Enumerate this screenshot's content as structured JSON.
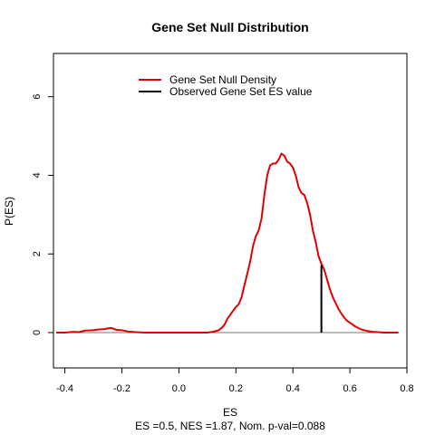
{
  "chart_data": {
    "type": "line",
    "title": "Gene Set Null Distribution",
    "xlabel": "ES",
    "ylabel": "P(ES)",
    "subtitle": "ES =0.5, NES =1.87, Nom. p-val=0.088",
    "xlim": [
      -0.44,
      0.8
    ],
    "ylim": [
      -0.9,
      7.1
    ],
    "x_ticks": [
      -0.4,
      -0.2,
      0.0,
      0.2,
      0.4,
      0.6,
      0.8
    ],
    "x_tick_labels": [
      "-0.4",
      "-0.2",
      "0.0",
      "0.2",
      "0.4",
      "0.6",
      "0.8"
    ],
    "y_ticks": [
      0,
      2,
      4,
      6
    ],
    "y_tick_labels": [
      "0",
      "2",
      "4",
      "6"
    ],
    "grid": false,
    "legend": {
      "placement": "top-center",
      "entries": [
        {
          "label": "Gene Set Null Density",
          "color": "#e00000"
        },
        {
          "label": "Observed Gene Set ES value",
          "color": "#000000"
        }
      ]
    },
    "baseline": {
      "y": 0,
      "x_range": [
        -0.43,
        0.77
      ],
      "color": "#777777"
    },
    "series": [
      {
        "name": "Gene Set Null Density",
        "color": "#e00000",
        "x": [
          -0.43,
          -0.4,
          -0.37,
          -0.35,
          -0.33,
          -0.3,
          -0.28,
          -0.26,
          -0.24,
          -0.23,
          -0.22,
          -0.2,
          -0.18,
          -0.15,
          -0.12,
          -0.08,
          0.0,
          0.05,
          0.1,
          0.12,
          0.14,
          0.15,
          0.16,
          0.17,
          0.18,
          0.19,
          0.2,
          0.21,
          0.22,
          0.23,
          0.24,
          0.25,
          0.26,
          0.27,
          0.28,
          0.29,
          0.3,
          0.31,
          0.32,
          0.33,
          0.34,
          0.35,
          0.36,
          0.37,
          0.38,
          0.39,
          0.4,
          0.41,
          0.42,
          0.43,
          0.44,
          0.45,
          0.46,
          0.47,
          0.48,
          0.49,
          0.5,
          0.51,
          0.52,
          0.53,
          0.54,
          0.55,
          0.56,
          0.57,
          0.58,
          0.59,
          0.6,
          0.62,
          0.64,
          0.66,
          0.68,
          0.7,
          0.72,
          0.74,
          0.77
        ],
        "values": [
          0.0,
          0.0,
          0.02,
          0.01,
          0.05,
          0.06,
          0.08,
          0.09,
          0.12,
          0.1,
          0.07,
          0.06,
          0.03,
          0.01,
          0.0,
          0.0,
          0.0,
          0.0,
          0.0,
          0.02,
          0.06,
          0.12,
          0.2,
          0.35,
          0.45,
          0.55,
          0.65,
          0.72,
          0.9,
          1.2,
          1.5,
          1.8,
          2.2,
          2.45,
          2.6,
          2.9,
          3.5,
          4.0,
          4.25,
          4.3,
          4.3,
          4.4,
          4.55,
          4.5,
          4.35,
          4.3,
          4.2,
          4.0,
          3.7,
          3.55,
          3.5,
          3.3,
          3.0,
          2.6,
          2.3,
          1.95,
          1.75,
          1.6,
          1.35,
          1.1,
          0.9,
          0.75,
          0.6,
          0.48,
          0.38,
          0.3,
          0.25,
          0.15,
          0.08,
          0.04,
          0.02,
          0.01,
          0.0,
          0.0,
          0.0
        ]
      }
    ],
    "observed_es": {
      "x": 0.5,
      "y": 1.72,
      "color": "#000000"
    }
  }
}
